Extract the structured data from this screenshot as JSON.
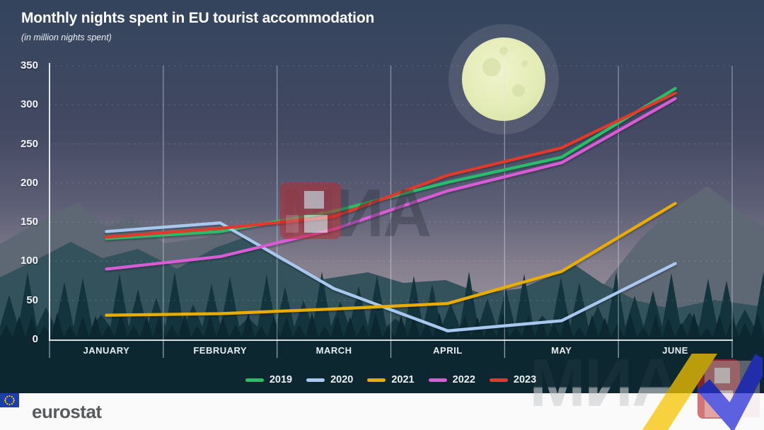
{
  "header": {
    "title": "Monthly nights spent in EU tourist accommodation",
    "subtitle": "(in million nights spent)"
  },
  "chart_data": {
    "type": "line",
    "title": "Monthly nights spent in EU tourist accommodation",
    "subtitle": "(in million nights spent)",
    "categories": [
      "JANUARY",
      "FEBRUARY",
      "MARCH",
      "APRIL",
      "MAY",
      "JUNE"
    ],
    "series": [
      {
        "name": "2019",
        "color": "#28bd68",
        "values": [
          129,
          138,
          164,
          201,
          233,
          321
        ]
      },
      {
        "name": "2020",
        "color": "#a9c8ef",
        "values": [
          138,
          149,
          65,
          11,
          24,
          97
        ]
      },
      {
        "name": "2021",
        "color": "#e9ad00",
        "values": [
          31,
          33,
          39,
          46,
          87,
          174
        ]
      },
      {
        "name": "2022",
        "color": "#d95cd6",
        "values": [
          90,
          106,
          141,
          190,
          226,
          308
        ]
      },
      {
        "name": "2023",
        "color": "#e13a2c",
        "values": [
          131,
          142,
          157,
          210,
          245,
          315
        ]
      }
    ],
    "ylim": [
      0,
      350
    ],
    "y_ticks": [
      350,
      300,
      250,
      200,
      150,
      100,
      50,
      0
    ],
    "xlabel": "",
    "ylabel": "",
    "grid": "vertical solid month separators, faint dashed horizontals",
    "legend_position": "bottom-center"
  },
  "footer": {
    "brand": "eurostat"
  },
  "watermark": {
    "text": "МИА"
  }
}
